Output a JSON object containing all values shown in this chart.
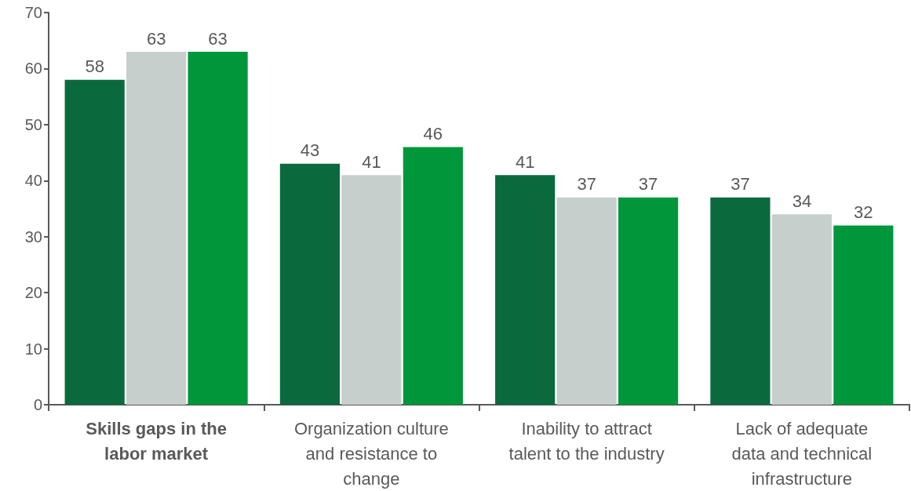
{
  "chart_data": {
    "type": "bar",
    "categories": [
      "Skills gaps in the labor market",
      "Organization culture and resistance to change",
      "Inability to attract talent to the industry",
      "Lack of adequate data and technical infrastructure"
    ],
    "series": [
      {
        "color": "#0b6a3d",
        "values": [
          58,
          43,
          41,
          37
        ]
      },
      {
        "color": "#c6cfcc",
        "values": [
          63,
          41,
          37,
          34
        ]
      },
      {
        "color": "#00973a",
        "values": [
          63,
          46,
          37,
          32
        ]
      }
    ],
    "ylim": [
      0,
      70
    ],
    "yticks": [
      0,
      10,
      20,
      30,
      40,
      50,
      60,
      70
    ],
    "grid": false,
    "data_labels": true
  }
}
